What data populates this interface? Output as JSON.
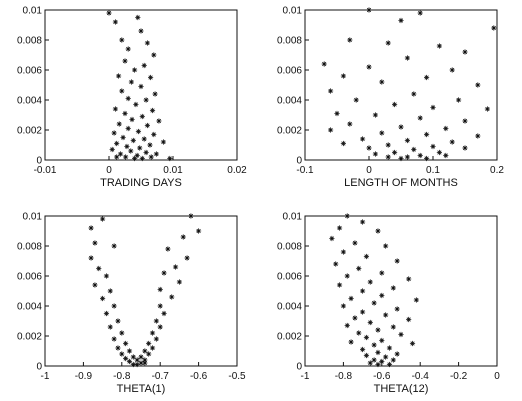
{
  "chart_data": [
    {
      "type": "scatter",
      "xlabel": "TRADING DAYS",
      "ylabel": "",
      "xlim": [
        -0.01,
        0.02
      ],
      "ylim": [
        0,
        0.01
      ],
      "xticks": [
        "-0.01",
        "0",
        "0.01",
        "0.02"
      ],
      "yticks": [
        "0",
        "0.002",
        "0.004",
        "0.006",
        "0.008",
        "0.01"
      ],
      "series": [
        {
          "points": [
            [
              0.0,
              0.0098
            ],
            [
              0.001,
              0.0092
            ],
            [
              0.0045,
              0.0095
            ],
            [
              0.005,
              0.0086
            ],
            [
              0.002,
              0.008
            ],
            [
              0.006,
              0.0078
            ],
            [
              0.003,
              0.0074
            ],
            [
              0.007,
              0.007
            ],
            [
              0.0025,
              0.0066
            ],
            [
              0.0055,
              0.0063
            ],
            [
              0.004,
              0.006
            ],
            [
              0.0015,
              0.0056
            ],
            [
              0.0065,
              0.0055
            ],
            [
              0.0035,
              0.0052
            ],
            [
              0.005,
              0.0049
            ],
            [
              0.002,
              0.0046
            ],
            [
              0.0072,
              0.0044
            ],
            [
              0.003,
              0.0041
            ],
            [
              0.0058,
              0.004
            ],
            [
              0.0042,
              0.0037
            ],
            [
              0.001,
              0.0034
            ],
            [
              0.0068,
              0.0033
            ],
            [
              0.0025,
              0.0031
            ],
            [
              0.0052,
              0.0029
            ],
            [
              0.0036,
              0.0027
            ],
            [
              0.0078,
              0.0026
            ],
            [
              0.0016,
              0.0024
            ],
            [
              0.006,
              0.0023
            ],
            [
              0.003,
              0.0021
            ],
            [
              0.0046,
              0.0019
            ],
            [
              0.0008,
              0.0018
            ],
            [
              0.007,
              0.0017
            ],
            [
              0.0022,
              0.0015
            ],
            [
              0.0055,
              0.0014
            ],
            [
              0.0038,
              0.0013
            ],
            [
              0.0012,
              0.0011
            ],
            [
              0.0064,
              0.001
            ],
            [
              0.0028,
              0.0009
            ],
            [
              0.0048,
              0.0008
            ],
            [
              0.0085,
              0.0012
            ],
            [
              0.0005,
              0.0007
            ],
            [
              0.0034,
              0.0006
            ],
            [
              0.0058,
              0.0005
            ],
            [
              0.0018,
              0.0004
            ],
            [
              0.0044,
              0.0003
            ],
            [
              0.0074,
              0.0004
            ],
            [
              0.0026,
              0.0002
            ],
            [
              0.0052,
              0.0001
            ],
            [
              0.0012,
              0.0002
            ],
            [
              0.0066,
              0.0002
            ],
            [
              0.004,
              0.0001
            ],
            [
              0.0095,
              0.0001
            ]
          ]
        }
      ]
    },
    {
      "type": "scatter",
      "xlabel": "LENGTH OF MONTHS",
      "ylabel": "",
      "xlim": [
        -0.1,
        0.2
      ],
      "ylim": [
        0,
        0.01
      ],
      "xticks": [
        "-0.1",
        "0",
        "0.1",
        "0.2"
      ],
      "yticks": [
        "0",
        "0.002",
        "0.004",
        "0.006",
        "0.008",
        "0.01"
      ],
      "series": [
        {
          "points": [
            [
              0.0,
              0.01
            ],
            [
              0.08,
              0.0098
            ],
            [
              0.195,
              0.0088
            ],
            [
              0.05,
              0.0093
            ],
            [
              -0.03,
              0.008
            ],
            [
              0.03,
              0.0078
            ],
            [
              0.11,
              0.0076
            ],
            [
              0.15,
              0.0072
            ],
            [
              -0.07,
              0.0064
            ],
            [
              0.06,
              0.0068
            ],
            [
              0.0,
              0.0062
            ],
            [
              0.13,
              0.006
            ],
            [
              -0.04,
              0.0056
            ],
            [
              0.09,
              0.0055
            ],
            [
              0.17,
              0.005
            ],
            [
              0.02,
              0.0052
            ],
            [
              -0.06,
              0.0046
            ],
            [
              0.07,
              0.0044
            ],
            [
              0.14,
              0.004
            ],
            [
              -0.02,
              0.004
            ],
            [
              0.04,
              0.0037
            ],
            [
              0.1,
              0.0035
            ],
            [
              0.185,
              0.0034
            ],
            [
              -0.05,
              0.0031
            ],
            [
              0.01,
              0.003
            ],
            [
              0.08,
              0.0028
            ],
            [
              0.15,
              0.0026
            ],
            [
              -0.03,
              0.0024
            ],
            [
              0.05,
              0.0022
            ],
            [
              0.12,
              0.0021
            ],
            [
              -0.06,
              0.002
            ],
            [
              0.02,
              0.0018
            ],
            [
              0.09,
              0.0017
            ],
            [
              0.17,
              0.0016
            ],
            [
              -0.01,
              0.0014
            ],
            [
              0.06,
              0.0013
            ],
            [
              0.13,
              0.0012
            ],
            [
              0.03,
              0.001
            ],
            [
              0.1,
              0.0009
            ],
            [
              -0.04,
              0.0011
            ],
            [
              0.07,
              0.0007
            ],
            [
              0.0,
              0.0008
            ],
            [
              0.15,
              0.0008
            ],
            [
              0.04,
              0.0005
            ],
            [
              0.11,
              0.0005
            ],
            [
              0.01,
              0.0004
            ],
            [
              0.08,
              0.0003
            ],
            [
              0.06,
              0.0002
            ],
            [
              0.03,
              0.0002
            ],
            [
              0.12,
              0.0003
            ],
            [
              0.05,
              0.0001
            ],
            [
              0.09,
              0.0001
            ]
          ]
        }
      ]
    },
    {
      "type": "scatter",
      "xlabel": "THETA(1)",
      "ylabel": "",
      "xlim": [
        -1,
        -0.5
      ],
      "ylim": [
        0,
        0.01
      ],
      "xticks": [
        "-1",
        "-0.9",
        "-0.8",
        "-0.7",
        "-0.6",
        "-0.5"
      ],
      "yticks": [
        "0",
        "0.002",
        "0.004",
        "0.006",
        "0.008",
        "0.01"
      ],
      "series": [
        {
          "points": [
            [
              -0.88,
              0.0092
            ],
            [
              -0.85,
              0.0098
            ],
            [
              -0.62,
              0.01
            ],
            [
              -0.6,
              0.009
            ],
            [
              -0.87,
              0.0082
            ],
            [
              -0.64,
              0.0086
            ],
            [
              -0.82,
              0.008
            ],
            [
              -0.68,
              0.0078
            ],
            [
              -0.88,
              0.0072
            ],
            [
              -0.63,
              0.0072
            ],
            [
              -0.86,
              0.0065
            ],
            [
              -0.66,
              0.0066
            ],
            [
              -0.84,
              0.006
            ],
            [
              -0.69,
              0.0062
            ],
            [
              -0.87,
              0.0054
            ],
            [
              -0.65,
              0.0056
            ],
            [
              -0.83,
              0.005
            ],
            [
              -0.7,
              0.0051
            ],
            [
              -0.85,
              0.0045
            ],
            [
              -0.67,
              0.0046
            ],
            [
              -0.82,
              0.004
            ],
            [
              -0.7,
              0.004
            ],
            [
              -0.84,
              0.0035
            ],
            [
              -0.69,
              0.0035
            ],
            [
              -0.81,
              0.003
            ],
            [
              -0.71,
              0.003
            ],
            [
              -0.83,
              0.0026
            ],
            [
              -0.7,
              0.0026
            ],
            [
              -0.8,
              0.0022
            ],
            [
              -0.72,
              0.0022
            ],
            [
              -0.82,
              0.0018
            ],
            [
              -0.71,
              0.0018
            ],
            [
              -0.79,
              0.0015
            ],
            [
              -0.73,
              0.0015
            ],
            [
              -0.81,
              0.0012
            ],
            [
              -0.72,
              0.0012
            ],
            [
              -0.78,
              0.001
            ],
            [
              -0.74,
              0.001
            ],
            [
              -0.8,
              0.0008
            ],
            [
              -0.73,
              0.0008
            ],
            [
              -0.77,
              0.0006
            ],
            [
              -0.75,
              0.0006
            ],
            [
              -0.79,
              0.0005
            ],
            [
              -0.74,
              0.0004
            ],
            [
              -0.76,
              0.0004
            ],
            [
              -0.78,
              0.0003
            ],
            [
              -0.75,
              0.0002
            ],
            [
              -0.77,
              0.0001
            ],
            [
              -0.76,
              0.0001
            ],
            [
              -0.74,
              0.0002
            ]
          ]
        }
      ]
    },
    {
      "type": "scatter",
      "xlabel": "THETA(12)",
      "ylabel": "",
      "xlim": [
        -1,
        0
      ],
      "ylim": [
        0,
        0.01
      ],
      "xticks": [
        "-1",
        "-0.8",
        "-0.6",
        "-0.4",
        "-0.2",
        "0"
      ],
      "yticks": [
        "0",
        "0.002",
        "0.004",
        "0.006",
        "0.008",
        "0.01"
      ],
      "series": [
        {
          "points": [
            [
              -0.78,
              0.01
            ],
            [
              -0.7,
              0.0096
            ],
            [
              -0.82,
              0.0092
            ],
            [
              -0.62,
              0.009
            ],
            [
              -0.86,
              0.0085
            ],
            [
              -0.74,
              0.0082
            ],
            [
              -0.58,
              0.008
            ],
            [
              -0.8,
              0.0076
            ],
            [
              -0.68,
              0.0073
            ],
            [
              -0.52,
              0.007
            ],
            [
              -0.84,
              0.0068
            ],
            [
              -0.72,
              0.0065
            ],
            [
              -0.6,
              0.0062
            ],
            [
              -0.78,
              0.006
            ],
            [
              -0.46,
              0.0058
            ],
            [
              -0.66,
              0.0056
            ],
            [
              -0.82,
              0.0054
            ],
            [
              -0.54,
              0.0052
            ],
            [
              -0.7,
              0.005
            ],
            [
              -0.6,
              0.0047
            ],
            [
              -0.76,
              0.0045
            ],
            [
              -0.42,
              0.0044
            ],
            [
              -0.64,
              0.0042
            ],
            [
              -0.8,
              0.004
            ],
            [
              -0.52,
              0.0038
            ],
            [
              -0.7,
              0.0036
            ],
            [
              -0.58,
              0.0034
            ],
            [
              -0.74,
              0.0032
            ],
            [
              -0.46,
              0.0031
            ],
            [
              -0.66,
              0.0029
            ],
            [
              -0.78,
              0.0027
            ],
            [
              -0.54,
              0.0026
            ],
            [
              -0.62,
              0.0024
            ],
            [
              -0.72,
              0.0022
            ],
            [
              -0.5,
              0.0021
            ],
            [
              -0.68,
              0.0019
            ],
            [
              -0.6,
              0.0017
            ],
            [
              -0.76,
              0.0016
            ],
            [
              -0.44,
              0.0015
            ],
            [
              -0.64,
              0.0014
            ],
            [
              -0.56,
              0.0012
            ],
            [
              -0.7,
              0.0011
            ],
            [
              -0.62,
              0.0009
            ],
            [
              -0.52,
              0.0008
            ],
            [
              -0.68,
              0.0007
            ],
            [
              -0.58,
              0.0006
            ],
            [
              -0.64,
              0.0004
            ],
            [
              -0.54,
              0.0004
            ],
            [
              -0.6,
              0.0003
            ],
            [
              -0.66,
              0.0002
            ],
            [
              -0.62,
              0.0001
            ],
            [
              -0.56,
              0.0001
            ]
          ]
        }
      ]
    }
  ]
}
